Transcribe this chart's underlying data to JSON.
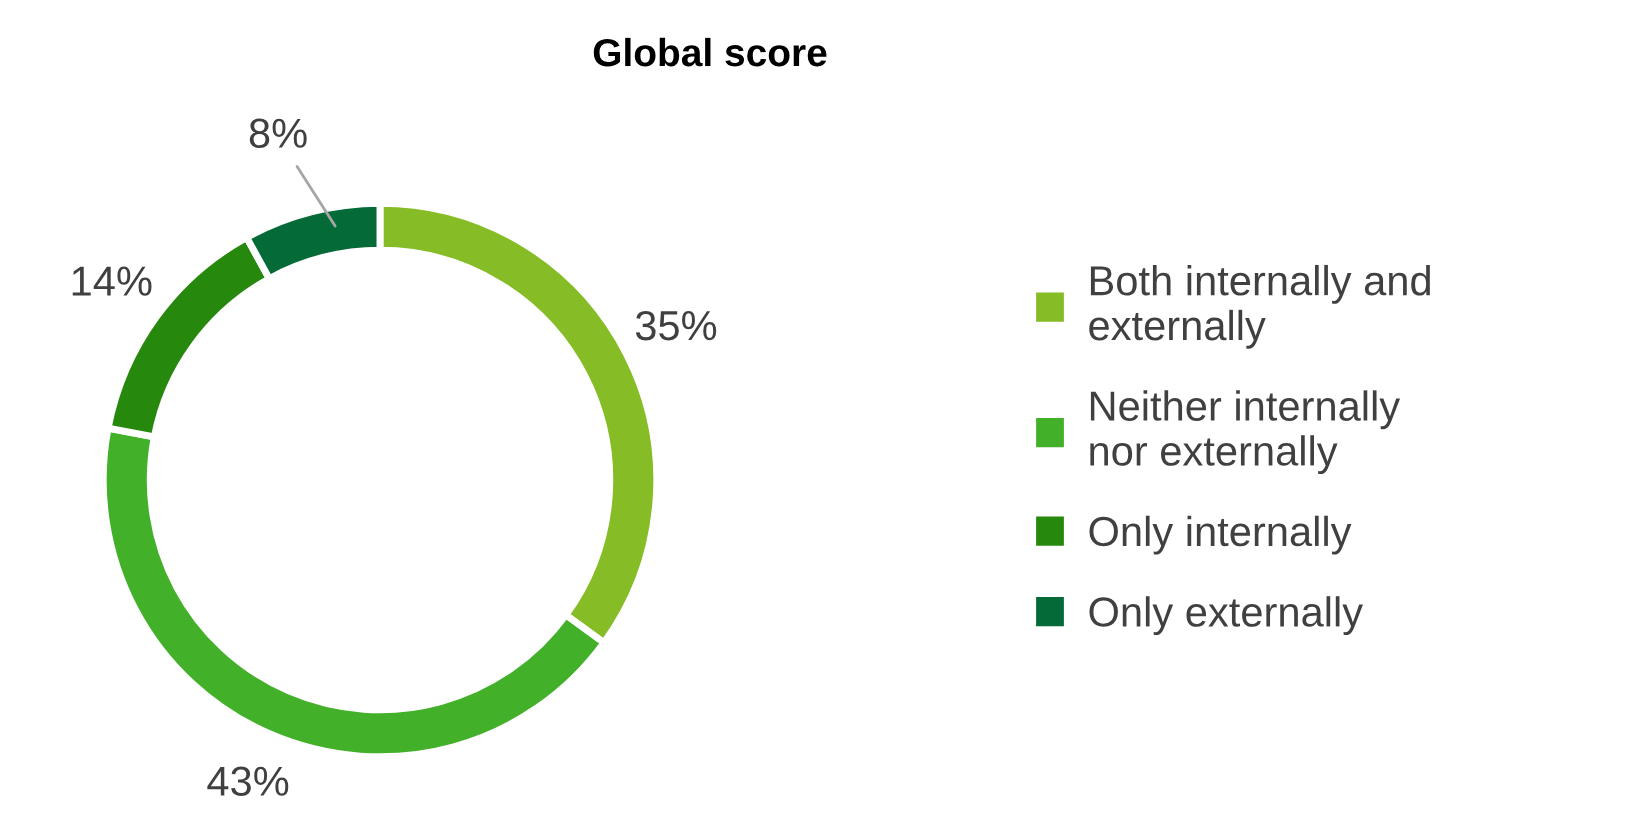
{
  "chart_data": {
    "type": "donut",
    "title": "Global score",
    "categories": [
      "Both internally and externally",
      "Neither internally nor externally",
      "Only internally",
      "Only externally"
    ],
    "values": [
      35,
      43,
      14,
      8
    ],
    "colors": [
      "#86bc25",
      "#43b02a",
      "#26890d",
      "#046a38"
    ],
    "value_labels": [
      "35%",
      "43%",
      "14%",
      "8%"
    ],
    "legend": "right"
  }
}
